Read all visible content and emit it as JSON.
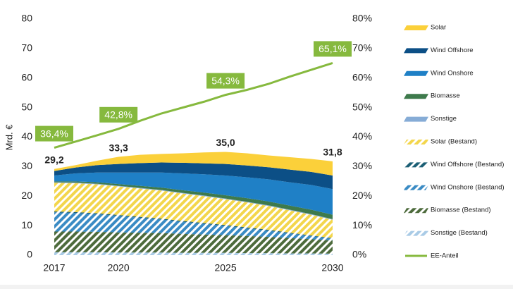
{
  "chart_data": {
    "type": "stacked-area",
    "y_label": "Mrd. €",
    "x": [
      2017,
      2018,
      2019,
      2020,
      2021,
      2022,
      2023,
      2024,
      2025,
      2026,
      2027,
      2028,
      2029,
      2030
    ],
    "xlim": [
      2017,
      2030
    ],
    "xticks": [
      2017,
      2020,
      2025,
      2030
    ],
    "ylim": [
      0,
      80
    ],
    "yticks": [
      0,
      10,
      20,
      30,
      40,
      50,
      60,
      70,
      80
    ],
    "y2lim": [
      0,
      80
    ],
    "y2ticks": [
      {
        "value": 0,
        "label": "0%"
      },
      {
        "value": 10,
        "label": "10%"
      },
      {
        "value": 20,
        "label": "20%"
      },
      {
        "value": 30,
        "label": "30%"
      },
      {
        "value": 40,
        "label": "40%"
      },
      {
        "value": 50,
        "label": "50%"
      },
      {
        "value": 60,
        "label": "60%"
      },
      {
        "value": 70,
        "label": "70%"
      },
      {
        "value": 80,
        "label": "80%"
      }
    ],
    "grid": false,
    "legend": "right",
    "series": [
      {
        "name": "Solar",
        "color": "#fbd03a",
        "hatched": false,
        "values": [
          0.7,
          0.8,
          1.5,
          2.4,
          2.8,
          2.9,
          3.2,
          3.7,
          4.1,
          4.1,
          4.0,
          4.2,
          4.4,
          4.8
        ]
      },
      {
        "name": "Wind Offshore",
        "color": "#0c4f86",
        "hatched": false,
        "values": [
          1.5,
          2.0,
          2.5,
          2.9,
          3.2,
          3.4,
          3.6,
          3.7,
          3.9,
          4.0,
          4.1,
          4.3,
          4.4,
          4.6
        ]
      },
      {
        "name": "Wind Onshore",
        "color": "#1f80c6",
        "hatched": false,
        "values": [
          2.0,
          2.7,
          3.3,
          3.9,
          4.5,
          5.1,
          5.7,
          6.2,
          6.7,
          7.1,
          7.5,
          7.9,
          8.4,
          8.7
        ]
      },
      {
        "name": "Biomasse",
        "color": "#3e7a4c",
        "hatched": false,
        "values": [
          0.3,
          0.4,
          0.5,
          0.6,
          0.7,
          0.8,
          0.9,
          1.0,
          1.1,
          1.2,
          1.3,
          1.4,
          1.5,
          1.5
        ]
      },
      {
        "name": "Sonstige",
        "color": "#86acd6",
        "hatched": false,
        "values": [
          0.2,
          0.2,
          0.2,
          0.2,
          0.2,
          0.2,
          0.2,
          0.2,
          0.2,
          0.2,
          0.2,
          0.2,
          0.2,
          0.2
        ]
      },
      {
        "name": "Solar (Bestand)",
        "color": "#f3d64c",
        "hatched": true,
        "values": [
          9.7,
          9.8,
          9.8,
          9.7,
          9.6,
          9.5,
          9.3,
          9.1,
          8.8,
          8.5,
          8.1,
          7.6,
          7.0,
          6.2
        ]
      },
      {
        "name": "Wind Offshore (Bestand)",
        "color": "#1b5e74",
        "hatched": true,
        "values": [
          0.3,
          0.3,
          0.3,
          0.3,
          0.3,
          0.3,
          0.3,
          0.3,
          0.3,
          0.3,
          0.3,
          0.2,
          0.2,
          0.2
        ]
      },
      {
        "name": "Wind Onshore (Bestand)",
        "color": "#3a8bc4",
        "hatched": true,
        "values": [
          6.5,
          6.3,
          6.0,
          5.6,
          5.1,
          4.6,
          4.1,
          3.6,
          3.1,
          2.6,
          2.1,
          1.6,
          1.1,
          0.6
        ]
      },
      {
        "name": "Biomasse (Bestand)",
        "color": "#4d6b3c",
        "hatched": true,
        "values": [
          7.0,
          7.0,
          6.9,
          6.8,
          6.7,
          6.6,
          6.4,
          6.2,
          6.0,
          5.8,
          5.5,
          5.2,
          4.8,
          4.5
        ]
      },
      {
        "name": "Sonstige (Bestand)",
        "color": "#a9cbe6",
        "hatched": true,
        "values": [
          1.0,
          1.0,
          1.0,
          0.9,
          0.9,
          0.9,
          0.8,
          0.8,
          0.8,
          0.7,
          0.7,
          0.6,
          0.6,
          0.5
        ]
      },
      {
        "name": "EE-Anteil",
        "color": "#86b93e",
        "kind": "line",
        "axis": "y2",
        "values": [
          36.4,
          38.5,
          40.6,
          42.8,
          45.5,
          48.0,
          50.0,
          52.0,
          54.3,
          56.0,
          58.0,
          60.5,
          62.8,
          65.1
        ],
        "value_labels": [
          "36,4%",
          null,
          null,
          "42,8%",
          null,
          null,
          null,
          null,
          "54,3%",
          null,
          null,
          null,
          null,
          "65,1%"
        ]
      }
    ],
    "total_labels": [
      {
        "x": 2017,
        "value": 29.2,
        "label": "29,2"
      },
      {
        "x": 2020,
        "value": 33.3,
        "label": "33,3"
      },
      {
        "x": 2025,
        "value": 35.0,
        "label": "35,0"
      },
      {
        "x": 2030,
        "value": 31.8,
        "label": "31,8"
      }
    ]
  }
}
